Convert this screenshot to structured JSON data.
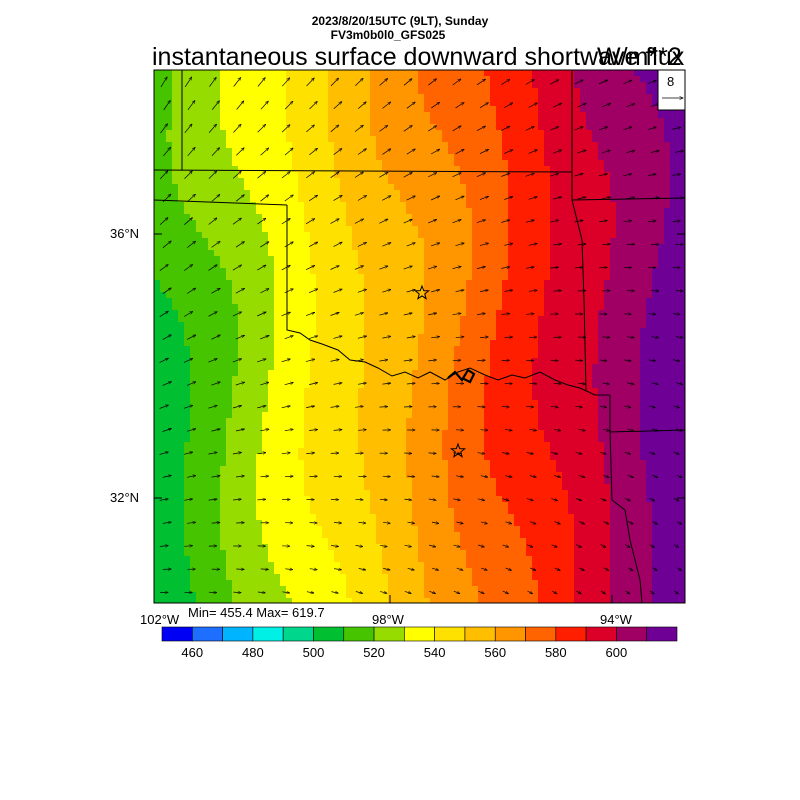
{
  "header": {
    "date_line": "2023/8/20/15UTC (9LT), Sunday",
    "model_line": "FV3m0b0l0_GFS025",
    "title": "instantaneous surface downward shortwave flux",
    "units": "W/m**2"
  },
  "map": {
    "lat_labels": [
      "36°N",
      "32°N"
    ],
    "lon_labels": [
      "102°W",
      "98°W",
      "94°W"
    ],
    "lon_extent": [
      -102,
      -94
    ],
    "lat_extent": [
      30.6,
      38.6
    ],
    "field_range_left_to_right": [
      502,
      620
    ],
    "station_markers": [
      "star",
      "star"
    ]
  },
  "vector_reference": {
    "value": "8",
    "icon": "reference-arrow-icon"
  },
  "stats": {
    "text": "Min= 455.4 Max= 619.7",
    "min": 455.4,
    "max": 619.7
  },
  "colorbar": {
    "colors": [
      "#0000f5",
      "#1e6fff",
      "#00b4ff",
      "#00f0e6",
      "#00d68c",
      "#00c032",
      "#46c400",
      "#96dc00",
      "#ffff00",
      "#ffe100",
      "#ffbe00",
      "#ff9600",
      "#ff6400",
      "#ff1e00",
      "#dc0028",
      "#a00064",
      "#6e0096"
    ],
    "labels": [
      "460",
      "480",
      "500",
      "520",
      "540",
      "560",
      "580",
      "600"
    ],
    "label_boundaries": [
      1,
      3,
      5,
      7,
      9,
      11,
      13,
      15
    ]
  }
}
